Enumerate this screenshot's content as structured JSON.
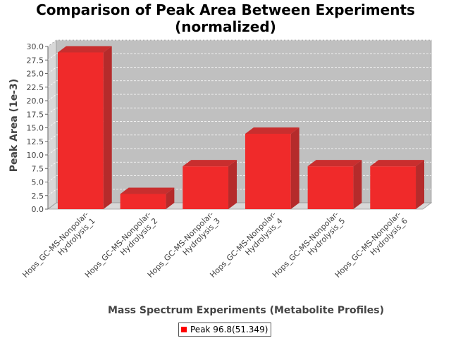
{
  "chart_data": {
    "type": "bar",
    "title_lines": [
      "Comparison of Peak Area Between Experiments",
      "(normalized)"
    ],
    "xlabel": "Mass Spectrum Experiments (Metabolite Profiles)",
    "ylabel": "Peak Area (1e-3)",
    "ylim": [
      0,
      30
    ],
    "yticks": [
      "0.0",
      "2.5",
      "5.0",
      "7.5",
      "10.0",
      "12.5",
      "15.0",
      "17.5",
      "20.0",
      "22.5",
      "25.0",
      "27.5",
      "30.0"
    ],
    "categories": [
      [
        "Hops_GC-MS-Nonpolar-",
        "Hydrolysis_1"
      ],
      [
        "Hops_GC-MS-Nonpolar-",
        "Hydrolysis_2"
      ],
      [
        "Hops_GC-MS-Nonpolar-",
        "Hydrolysis_3"
      ],
      [
        "Hops_GC-MS-Nonpolar-",
        "Hydrolysis_4"
      ],
      [
        "Hops_GC-MS-Nonpolar-",
        "Hydrolysis_5"
      ],
      [
        "Hops_GC-MS-Nonpolar-",
        "Hydrolysis_6"
      ]
    ],
    "series": [
      {
        "name": "Peak 96.8(51.349)",
        "values": [
          28.9,
          2.8,
          7.9,
          13.9,
          7.9,
          7.9
        ],
        "color": "#ff0000"
      }
    ],
    "grid": true,
    "legend_position": "bottom-center",
    "plot_background": "#c0c0c0"
  }
}
